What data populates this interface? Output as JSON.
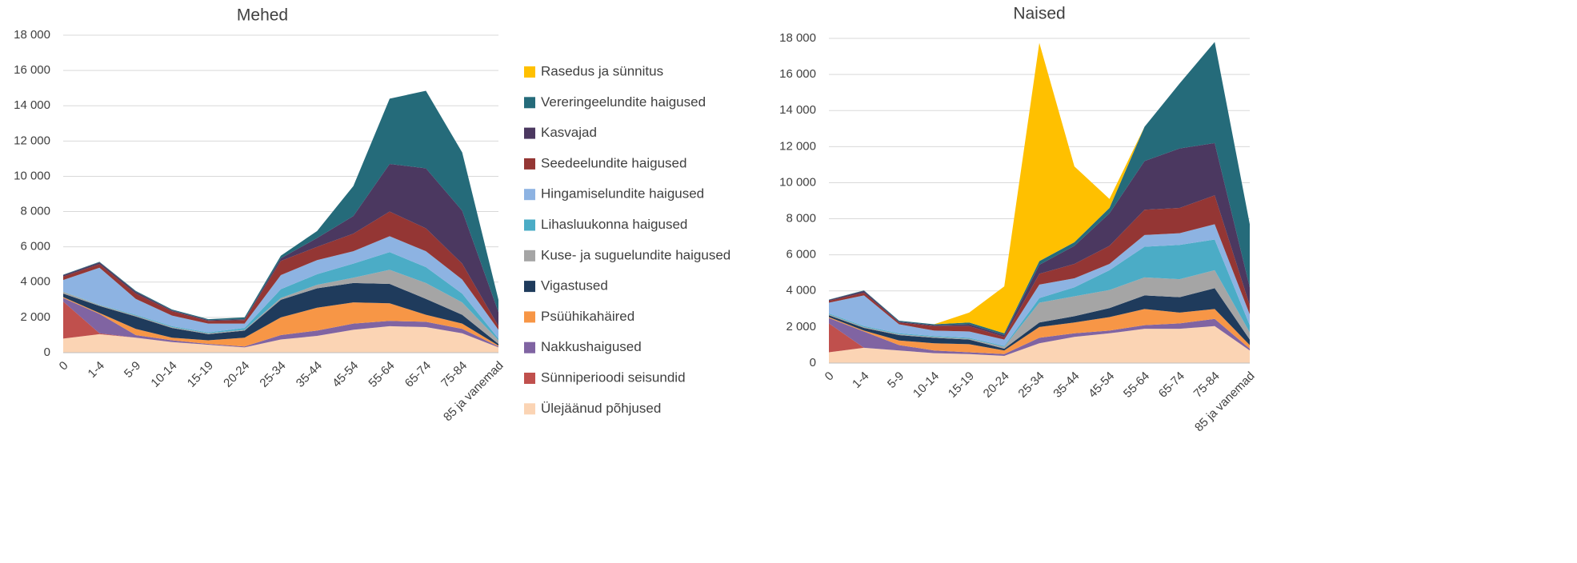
{
  "chart_data": [
    {
      "type": "area",
      "title": "Mehed",
      "categories": [
        "0",
        "1-4",
        "5-9",
        "10-14",
        "15-19",
        "20-24",
        "25-34",
        "35-44",
        "45-54",
        "55-64",
        "65-74",
        "75-84",
        "85 ja vanemad"
      ],
      "ylim": [
        0,
        18000
      ],
      "yticks": [
        0,
        {
          "value": 2000,
          "label": "2 000"
        },
        {
          "value": 4000,
          "label": "4 000"
        },
        {
          "value": 6000,
          "label": "6 000"
        },
        {
          "value": 8000,
          "label": "8 000"
        },
        {
          "value": 10000,
          "label": "10 000"
        },
        {
          "value": 12000,
          "label": "12 000"
        },
        {
          "value": 14000,
          "label": "14 000"
        },
        {
          "value": 16000,
          "label": "16 000"
        },
        {
          "value": 18000,
          "label": "18 000"
        }
      ],
      "grid": true,
      "series": [
        {
          "name": "Ülejäänud põhjused",
          "color": "#fbd4b4",
          "values": [
            800,
            1050,
            850,
            600,
            450,
            300,
            750,
            950,
            1300,
            1500,
            1450,
            1100,
            300
          ]
        },
        {
          "name": "Sünniperioodi seisundid",
          "color": "#c0504d",
          "values": [
            2100,
            50,
            0,
            0,
            0,
            0,
            0,
            0,
            0,
            0,
            0,
            0,
            0
          ]
        },
        {
          "name": "Nakkushaigused",
          "color": "#8064a2",
          "values": [
            200,
            1100,
            150,
            100,
            50,
            50,
            250,
            300,
            350,
            300,
            300,
            250,
            50
          ]
        },
        {
          "name": "Psüühikahäired",
          "color": "#f79646",
          "values": [
            50,
            50,
            350,
            150,
            200,
            500,
            1000,
            1300,
            1200,
            1000,
            400,
            300,
            50
          ]
        },
        {
          "name": "Vigastused",
          "color": "#1f3b5c",
          "values": [
            200,
            400,
            700,
            550,
            350,
            400,
            1000,
            1100,
            1100,
            1100,
            900,
            500,
            100
          ]
        },
        {
          "name": "Kuse- ja suguelundite haigused",
          "color": "#a5a5a5",
          "values": [
            100,
            50,
            50,
            50,
            50,
            50,
            100,
            200,
            300,
            800,
            900,
            700,
            200
          ]
        },
        {
          "name": "Lihasluukonna haigused",
          "color": "#4bacc6",
          "values": [
            20,
            20,
            50,
            50,
            50,
            100,
            500,
            600,
            800,
            1000,
            900,
            500,
            100
          ]
        },
        {
          "name": "Hingamiselundite haigused",
          "color": "#8db3e2",
          "values": [
            650,
            2100,
            900,
            600,
            500,
            250,
            800,
            800,
            700,
            900,
            900,
            800,
            500
          ]
        },
        {
          "name": "Seedeelundite haigused",
          "color": "#943634",
          "values": [
            200,
            200,
            300,
            250,
            150,
            200,
            800,
            750,
            1000,
            1400,
            1300,
            900,
            200
          ]
        },
        {
          "name": "Kasvajad",
          "color": "#4b3860",
          "values": [
            80,
            100,
            100,
            50,
            50,
            50,
            150,
            500,
            1000,
            2700,
            3400,
            3000,
            800
          ]
        },
        {
          "name": "Vereringeelundite haigused",
          "color": "#256b7a",
          "values": [
            20,
            30,
            50,
            50,
            50,
            100,
            150,
            400,
            1700,
            3700,
            4400,
            3300,
            700
          ]
        },
        {
          "name": "Rasedus ja sünnitus",
          "color": "#ffc000",
          "values": [
            0,
            0,
            0,
            0,
            0,
            0,
            0,
            0,
            0,
            0,
            0,
            0,
            0
          ]
        }
      ]
    },
    {
      "type": "area",
      "title": "Naised",
      "categories": [
        "0",
        "1-4",
        "5-9",
        "10-14",
        "15-19",
        "20-24",
        "25-34",
        "35-44",
        "45-54",
        "55-64",
        "65-74",
        "75-84",
        "85 ja vanemad"
      ],
      "ylim": [
        0,
        18000
      ],
      "yticks": [
        0,
        {
          "value": 2000,
          "label": "2 000"
        },
        {
          "value": 4000,
          "label": "4 000"
        },
        {
          "value": 6000,
          "label": "6 000"
        },
        {
          "value": 8000,
          "label": "8 000"
        },
        {
          "value": 10000,
          "label": "10 000"
        },
        {
          "value": 12000,
          "label": "12 000"
        },
        {
          "value": 14000,
          "label": "14 000"
        },
        {
          "value": 16000,
          "label": "16 000"
        },
        {
          "value": 18000,
          "label": "18 000"
        }
      ],
      "grid": true,
      "series": [
        {
          "values": [
            600,
            850,
            700,
            550,
            500,
            400,
            1100,
            1450,
            1650,
            1900,
            1900,
            2050,
            700
          ]
        },
        {
          "values": [
            1600,
            0,
            0,
            0,
            0,
            0,
            0,
            0,
            0,
            0,
            0,
            0,
            0
          ]
        },
        {
          "values": [
            300,
            900,
            300,
            150,
            100,
            100,
            300,
            200,
            150,
            200,
            300,
            400,
            100
          ]
        },
        {
          "values": [
            50,
            50,
            250,
            400,
            450,
            200,
            600,
            600,
            750,
            900,
            600,
            550,
            200
          ]
        },
        {
          "values": [
            100,
            150,
            300,
            300,
            250,
            100,
            250,
            350,
            500,
            750,
            850,
            1150,
            300
          ]
        },
        {
          "values": [
            50,
            50,
            50,
            50,
            50,
            100,
            1100,
            1100,
            1000,
            1000,
            1000,
            1000,
            400
          ]
        },
        {
          "values": [
            50,
            50,
            50,
            50,
            50,
            50,
            250,
            500,
            1100,
            1700,
            1900,
            1700,
            400
          ]
        },
        {
          "values": [
            600,
            1700,
            500,
            300,
            350,
            350,
            750,
            500,
            350,
            650,
            650,
            850,
            600
          ]
        },
        {
          "values": [
            100,
            150,
            100,
            250,
            300,
            150,
            600,
            800,
            1000,
            1400,
            1400,
            1600,
            500
          ]
        },
        {
          "values": [
            50,
            100,
            50,
            50,
            100,
            100,
            500,
            1000,
            1800,
            2700,
            3300,
            2900,
            1000
          ]
        },
        {
          "values": [
            20,
            30,
            50,
            50,
            100,
            100,
            200,
            200,
            300,
            1900,
            3600,
            5600,
            3500
          ]
        },
        {
          "values": [
            0,
            0,
            0,
            0,
            550,
            2600,
            12100,
            4200,
            500,
            0,
            0,
            0,
            0
          ]
        }
      ]
    }
  ]
}
